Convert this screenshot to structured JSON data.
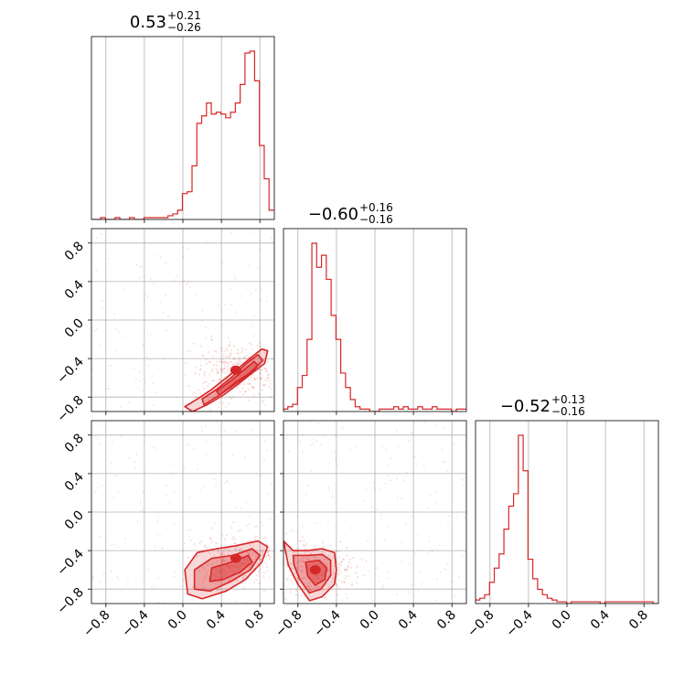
{
  "chart_data": {
    "type": "corner",
    "color": "#d62728",
    "grid": true,
    "range": [
      -0.95,
      0.95
    ],
    "tick_values": [
      -0.8,
      -0.4,
      0.0,
      0.4,
      0.8
    ],
    "tick_labels": [
      "−0.8",
      "−0.4",
      "0.0",
      "0.4",
      "0.8"
    ],
    "parameters": [
      {
        "title": {
          "median": "0.53",
          "plus": "+0.21",
          "minus": "−0.26"
        },
        "hist_x": [
          -0.93,
          -0.88,
          -0.83,
          -0.78,
          -0.73,
          -0.68,
          -0.63,
          -0.58,
          -0.53,
          -0.48,
          -0.43,
          -0.38,
          -0.33,
          -0.28,
          -0.23,
          -0.18,
          -0.13,
          -0.08,
          -0.03,
          0.02,
          0.07,
          0.12,
          0.17,
          0.22,
          0.27,
          0.32,
          0.37,
          0.42,
          0.47,
          0.52,
          0.57,
          0.62,
          0.67,
          0.72,
          0.77,
          0.82,
          0.87,
          0.92
        ],
        "hist_y": [
          0,
          0,
          1,
          0,
          0,
          1,
          0,
          0,
          1,
          0,
          0,
          1,
          1,
          1,
          1,
          1,
          2,
          3,
          5,
          14,
          15,
          29,
          52,
          56,
          63,
          57,
          58,
          57,
          55,
          58,
          63,
          73,
          90,
          91,
          75,
          40,
          22,
          5
        ]
      },
      {
        "title": {
          "median": "−0.60",
          "plus": "+0.16",
          "minus": "−0.16"
        },
        "hist_x": [
          -0.93,
          -0.88,
          -0.83,
          -0.78,
          -0.73,
          -0.68,
          -0.63,
          -0.58,
          -0.53,
          -0.48,
          -0.43,
          -0.38,
          -0.33,
          -0.28,
          -0.23,
          -0.18,
          -0.13,
          -0.08,
          -0.03,
          0.02,
          0.07,
          0.12,
          0.17,
          0.22,
          0.27,
          0.32,
          0.37,
          0.42,
          0.47,
          0.52,
          0.57,
          0.62,
          0.67,
          0.72,
          0.77,
          0.82,
          0.87,
          0.92
        ],
        "hist_y": [
          1,
          2,
          3,
          10,
          15,
          30,
          70,
          60,
          65,
          55,
          40,
          30,
          16,
          10,
          5,
          2,
          1,
          1,
          0,
          0,
          1,
          1,
          1,
          2,
          1,
          2,
          1,
          1,
          2,
          1,
          1,
          2,
          1,
          1,
          1,
          0,
          1,
          1
        ]
      },
      {
        "title": {
          "median": "−0.52",
          "plus": "+0.13",
          "minus": "−0.16"
        },
        "hist_x": [
          -0.93,
          -0.88,
          -0.83,
          -0.78,
          -0.73,
          -0.68,
          -0.63,
          -0.58,
          -0.53,
          -0.48,
          -0.43,
          -0.38,
          -0.33,
          -0.28,
          -0.23,
          -0.18,
          -0.13,
          -0.08,
          -0.03,
          0.02,
          0.07,
          0.12,
          0.17,
          0.22,
          0.27,
          0.32,
          0.37,
          0.42,
          0.47,
          0.52,
          0.57,
          0.62,
          0.67,
          0.72,
          0.77,
          0.82,
          0.87,
          0.92
        ],
        "hist_y": [
          2,
          3,
          5,
          12,
          20,
          28,
          42,
          55,
          62,
          95,
          75,
          25,
          14,
          8,
          5,
          3,
          2,
          1,
          1,
          0,
          1,
          1,
          1,
          1,
          1,
          1,
          0,
          1,
          1,
          1,
          1,
          1,
          1,
          1,
          1,
          1,
          1,
          0
        ]
      }
    ],
    "pairs": [
      {
        "x_param": 0,
        "y_param": 1,
        "center": [
          0.55,
          -0.52
        ],
        "contours": [
          [
            [
              0.02,
              -0.9
            ],
            [
              0.15,
              -0.82
            ],
            [
              0.3,
              -0.72
            ],
            [
              0.45,
              -0.6
            ],
            [
              0.6,
              -0.48
            ],
            [
              0.72,
              -0.38
            ],
            [
              0.82,
              -0.3
            ],
            [
              0.88,
              -0.32
            ],
            [
              0.85,
              -0.45
            ],
            [
              0.72,
              -0.55
            ],
            [
              0.58,
              -0.66
            ],
            [
              0.42,
              -0.78
            ],
            [
              0.25,
              -0.88
            ],
            [
              0.1,
              -0.95
            ]
          ],
          [
            [
              0.2,
              -0.82
            ],
            [
              0.35,
              -0.72
            ],
            [
              0.5,
              -0.6
            ],
            [
              0.65,
              -0.46
            ],
            [
              0.78,
              -0.36
            ],
            [
              0.83,
              -0.42
            ],
            [
              0.72,
              -0.54
            ],
            [
              0.55,
              -0.66
            ],
            [
              0.38,
              -0.78
            ],
            [
              0.22,
              -0.88
            ]
          ],
          [
            [
              0.35,
              -0.74
            ],
            [
              0.5,
              -0.63
            ],
            [
              0.63,
              -0.52
            ],
            [
              0.74,
              -0.43
            ],
            [
              0.78,
              -0.47
            ],
            [
              0.68,
              -0.56
            ],
            [
              0.53,
              -0.66
            ],
            [
              0.38,
              -0.78
            ]
          ]
        ]
      },
      {
        "x_param": 0,
        "y_param": 2,
        "center": [
          0.55,
          -0.48
        ],
        "contours": [
          [
            [
              0.05,
              -0.85
            ],
            [
              0.02,
              -0.6
            ],
            [
              0.15,
              -0.42
            ],
            [
              0.35,
              -0.38
            ],
            [
              0.55,
              -0.35
            ],
            [
              0.78,
              -0.3
            ],
            [
              0.88,
              -0.36
            ],
            [
              0.82,
              -0.52
            ],
            [
              0.65,
              -0.7
            ],
            [
              0.45,
              -0.82
            ],
            [
              0.2,
              -0.9
            ]
          ],
          [
            [
              0.12,
              -0.8
            ],
            [
              0.12,
              -0.6
            ],
            [
              0.3,
              -0.48
            ],
            [
              0.52,
              -0.45
            ],
            [
              0.72,
              -0.38
            ],
            [
              0.8,
              -0.45
            ],
            [
              0.7,
              -0.6
            ],
            [
              0.5,
              -0.72
            ],
            [
              0.28,
              -0.82
            ]
          ],
          [
            [
              0.28,
              -0.72
            ],
            [
              0.3,
              -0.58
            ],
            [
              0.5,
              -0.52
            ],
            [
              0.68,
              -0.45
            ],
            [
              0.72,
              -0.52
            ],
            [
              0.6,
              -0.62
            ],
            [
              0.42,
              -0.7
            ]
          ]
        ]
      },
      {
        "x_param": 1,
        "y_param": 2,
        "center": [
          -0.62,
          -0.6
        ],
        "contours": [
          [
            [
              -0.95,
              -0.3
            ],
            [
              -0.85,
              -0.4
            ],
            [
              -0.7,
              -0.4
            ],
            [
              -0.55,
              -0.38
            ],
            [
              -0.42,
              -0.42
            ],
            [
              -0.4,
              -0.6
            ],
            [
              -0.42,
              -0.75
            ],
            [
              -0.55,
              -0.88
            ],
            [
              -0.68,
              -0.92
            ],
            [
              -0.8,
              -0.75
            ],
            [
              -0.9,
              -0.55
            ]
          ],
          [
            [
              -0.85,
              -0.45
            ],
            [
              -0.7,
              -0.45
            ],
            [
              -0.55,
              -0.44
            ],
            [
              -0.46,
              -0.5
            ],
            [
              -0.46,
              -0.66
            ],
            [
              -0.56,
              -0.8
            ],
            [
              -0.68,
              -0.84
            ],
            [
              -0.78,
              -0.7
            ],
            [
              -0.84,
              -0.55
            ]
          ],
          [
            [
              -0.72,
              -0.52
            ],
            [
              -0.58,
              -0.5
            ],
            [
              -0.5,
              -0.58
            ],
            [
              -0.52,
              -0.7
            ],
            [
              -0.62,
              -0.76
            ],
            [
              -0.7,
              -0.66
            ]
          ]
        ]
      }
    ]
  }
}
